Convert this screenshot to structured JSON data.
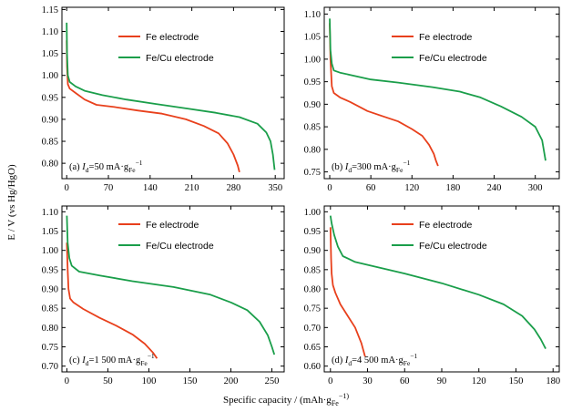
{
  "figure": {
    "ylabel": "E / V (vs Hg/HgO)",
    "xlabel": "Specific capacity / (mAh·g",
    "xlabel_sub": "Fe",
    "xlabel_tail": "−1)"
  },
  "colors": {
    "fe": "#e8401c",
    "fecu": "#1a9e4a"
  },
  "chart_data": [
    {
      "type": "line",
      "panel_label": "(a) I",
      "panel_label_sub": "d",
      "panel_label_rest": "=50 mA·g",
      "panel_label_sub2": "Fe",
      "panel_label_sup": "−1",
      "xticks": [
        0,
        70,
        140,
        210,
        280,
        350
      ],
      "yticks": [
        0.8,
        0.85,
        0.9,
        0.95,
        1.0,
        1.05,
        1.1,
        1.15
      ],
      "xlim": [
        -8,
        365
      ],
      "ylim": [
        0.765,
        1.155
      ],
      "series": [
        {
          "name": "Fe electrode",
          "color": "#e8401c",
          "x": [
            0,
            0.5,
            2,
            5,
            15,
            30,
            50,
            80,
            120,
            160,
            200,
            230,
            255,
            270,
            280,
            287,
            290
          ],
          "y": [
            1.08,
            1.02,
            0.98,
            0.97,
            0.96,
            0.945,
            0.933,
            0.928,
            0.92,
            0.913,
            0.9,
            0.885,
            0.868,
            0.845,
            0.82,
            0.795,
            0.78
          ]
        },
        {
          "name": "Fe/Cu electrode",
          "color": "#1a9e4a",
          "x": [
            0,
            0.5,
            2,
            5,
            15,
            30,
            60,
            100,
            150,
            200,
            250,
            290,
            320,
            335,
            342,
            346,
            349
          ],
          "y": [
            1.12,
            1.05,
            1.0,
            0.985,
            0.975,
            0.965,
            0.955,
            0.945,
            0.935,
            0.925,
            0.915,
            0.905,
            0.89,
            0.87,
            0.85,
            0.82,
            0.785
          ]
        }
      ]
    },
    {
      "type": "line",
      "panel_label": "(b) I",
      "panel_label_sub": "d",
      "panel_label_rest": "=300 mA·g",
      "panel_label_sub2": "Fe",
      "panel_label_sup": "−1",
      "xticks": [
        0,
        60,
        120,
        180,
        240,
        300
      ],
      "yticks": [
        0.75,
        0.8,
        0.85,
        0.9,
        0.95,
        1.0,
        1.05,
        1.1
      ],
      "xlim": [
        -8,
        335
      ],
      "ylim": [
        0.735,
        1.115
      ],
      "series": [
        {
          "name": "Fe electrode",
          "color": "#e8401c",
          "x": [
            0,
            1,
            3,
            6,
            15,
            30,
            55,
            80,
            100,
            120,
            135,
            145,
            152,
            155,
            158
          ],
          "y": [
            1.08,
            1.0,
            0.94,
            0.925,
            0.915,
            0.905,
            0.885,
            0.872,
            0.862,
            0.845,
            0.83,
            0.81,
            0.79,
            0.775,
            0.763
          ]
        },
        {
          "name": "Fe/Cu electrode",
          "color": "#1a9e4a",
          "x": [
            0,
            1,
            3,
            6,
            15,
            30,
            60,
            100,
            150,
            190,
            220,
            250,
            280,
            300,
            310,
            315
          ],
          "y": [
            1.09,
            1.02,
            0.99,
            0.975,
            0.97,
            0.965,
            0.955,
            0.948,
            0.938,
            0.928,
            0.915,
            0.895,
            0.872,
            0.85,
            0.82,
            0.775
          ]
        }
      ]
    },
    {
      "type": "line",
      "panel_label": "(c) I",
      "panel_label_sub": "d",
      "panel_label_rest": "=1 500 mA·g",
      "panel_label_sub2": "Fe",
      "panel_label_sup": "−1",
      "xticks": [
        0,
        50,
        100,
        150,
        200,
        250
      ],
      "yticks": [
        0.7,
        0.75,
        0.8,
        0.85,
        0.9,
        0.95,
        1.0,
        1.05,
        1.1
      ],
      "xlim": [
        -6,
        265
      ],
      "ylim": [
        0.685,
        1.115
      ],
      "series": [
        {
          "name": "Fe electrode",
          "color": "#e8401c",
          "x": [
            0,
            1,
            2,
            4,
            8,
            20,
            40,
            60,
            80,
            95,
            105,
            110
          ],
          "y": [
            1.02,
            0.95,
            0.9,
            0.875,
            0.865,
            0.848,
            0.825,
            0.805,
            0.782,
            0.758,
            0.735,
            0.72
          ]
        },
        {
          "name": "Fe/Cu electrode",
          "color": "#1a9e4a",
          "x": [
            0,
            1,
            3,
            6,
            15,
            40,
            80,
            130,
            175,
            200,
            220,
            235,
            245,
            250,
            253
          ],
          "y": [
            1.09,
            1.02,
            0.98,
            0.96,
            0.945,
            0.935,
            0.92,
            0.905,
            0.885,
            0.865,
            0.845,
            0.815,
            0.78,
            0.75,
            0.73
          ]
        }
      ]
    },
    {
      "type": "line",
      "panel_label": "(d) I",
      "panel_label_sub": "d",
      "panel_label_rest": "=4 500 mA·g",
      "panel_label_sub2": "Fe",
      "panel_label_sup": "−1",
      "xticks": [
        0,
        30,
        60,
        90,
        120,
        150,
        180
      ],
      "yticks": [
        0.6,
        0.65,
        0.7,
        0.75,
        0.8,
        0.85,
        0.9,
        0.95,
        1.0
      ],
      "xlim": [
        -5,
        185
      ],
      "ylim": [
        0.585,
        1.015
      ],
      "series": [
        {
          "name": "Fe electrode",
          "color": "#e8401c",
          "x": [
            0,
            0.5,
            1,
            2,
            4,
            8,
            14,
            20,
            25,
            28
          ],
          "y": [
            0.96,
            0.88,
            0.84,
            0.81,
            0.79,
            0.76,
            0.73,
            0.7,
            0.66,
            0.625
          ]
        },
        {
          "name": "Fe/Cu electrode",
          "color": "#1a9e4a",
          "x": [
            0,
            1,
            3,
            6,
            10,
            20,
            40,
            60,
            90,
            120,
            140,
            155,
            165,
            170,
            174
          ],
          "y": [
            0.99,
            0.97,
            0.94,
            0.91,
            0.885,
            0.87,
            0.855,
            0.84,
            0.815,
            0.785,
            0.76,
            0.73,
            0.695,
            0.67,
            0.645
          ]
        }
      ]
    }
  ]
}
